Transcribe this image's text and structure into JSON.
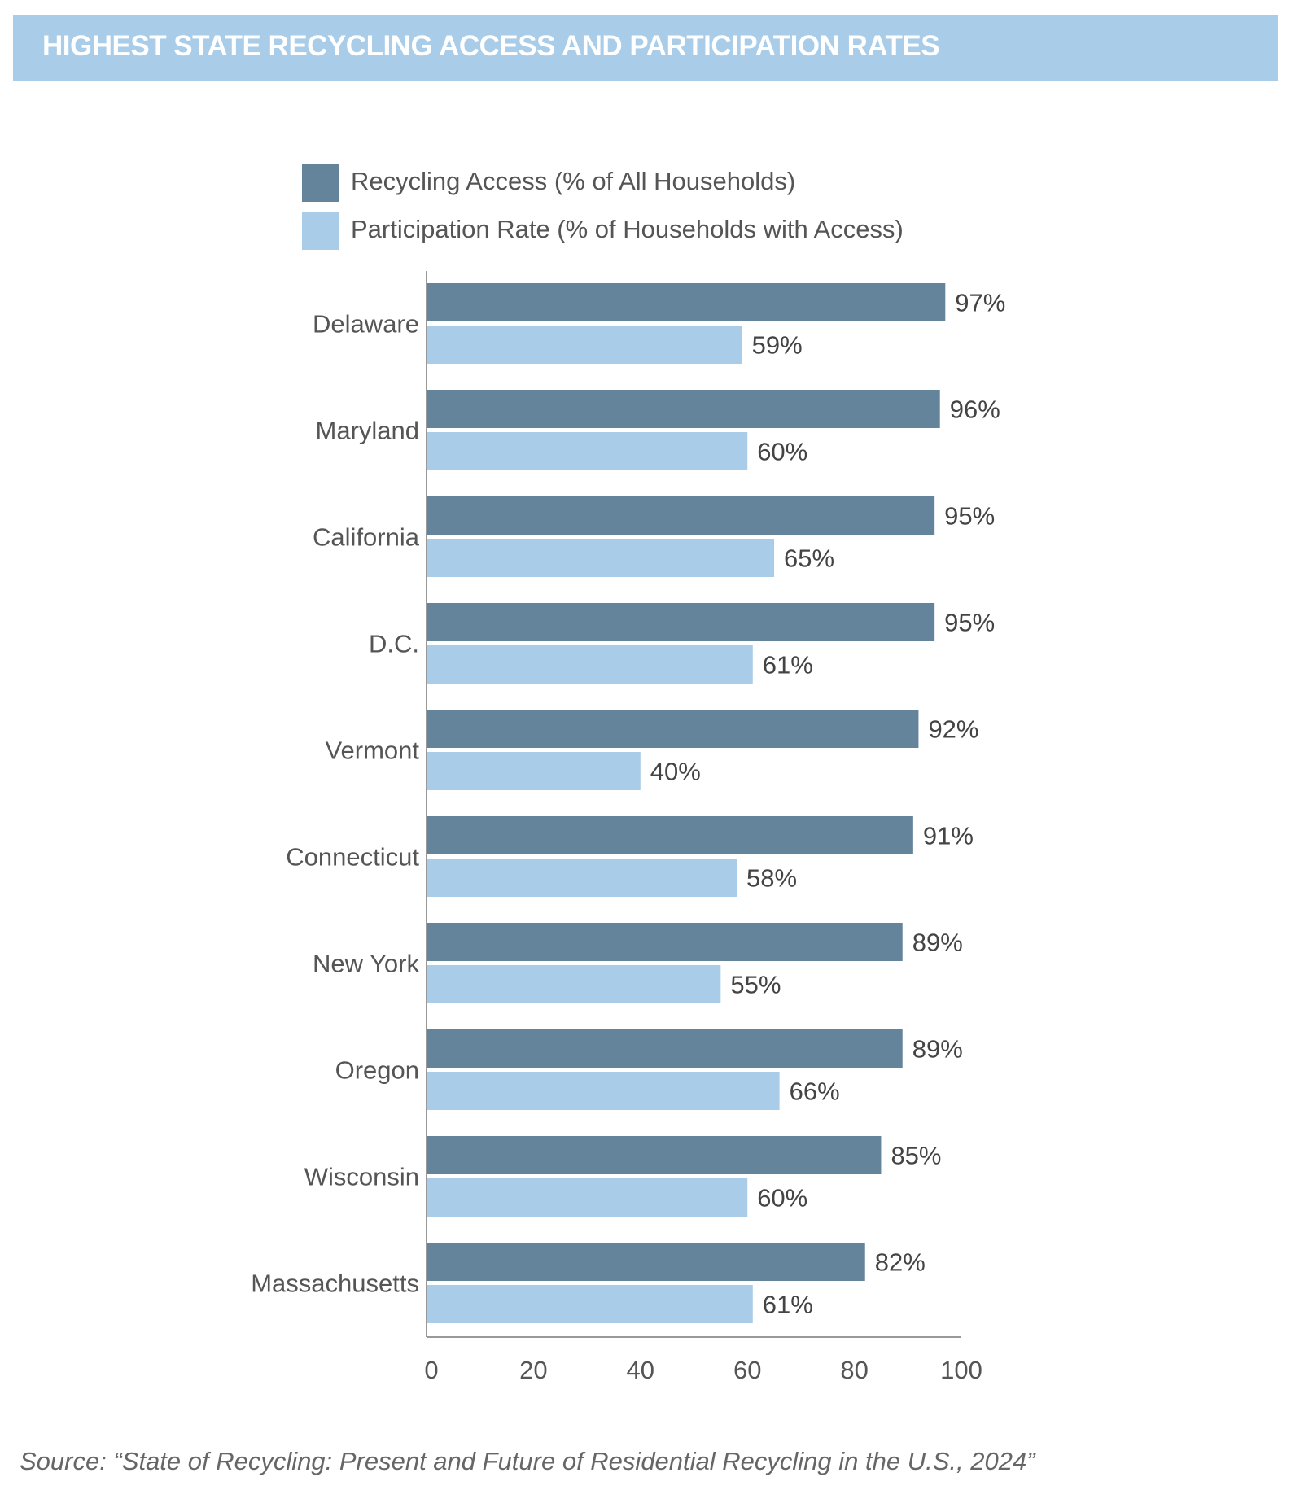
{
  "chart_data": {
    "type": "bar",
    "orientation": "horizontal",
    "title": "HIGHEST STATE RECYCLING ACCESS AND PARTICIPATION RATES",
    "categories": [
      "Delaware",
      "Maryland",
      "California",
      "D.C.",
      "Vermont",
      "Connecticut",
      "New York",
      "Oregon",
      "Wisconsin",
      "Massachusetts"
    ],
    "series": [
      {
        "name": "Recycling Access (% of All Households)",
        "color": "#64849c",
        "values": [
          97,
          96,
          95,
          95,
          92,
          91,
          89,
          89,
          85,
          82
        ]
      },
      {
        "name": "Participation Rate (% of Households with Access)",
        "color": "#a9cde8",
        "values": [
          59,
          60,
          65,
          61,
          40,
          58,
          55,
          66,
          60,
          61
        ]
      }
    ],
    "value_suffix": "%",
    "xlim": [
      0,
      100
    ],
    "xticks": [
      "0",
      "20",
      "40",
      "60",
      "80",
      "100"
    ],
    "xlabel": "",
    "ylabel": "",
    "grid": false,
    "legend": "top"
  },
  "source": "Source: “State of Recycling: Present and Future of Residential Recycling in the U.S., 2024”"
}
